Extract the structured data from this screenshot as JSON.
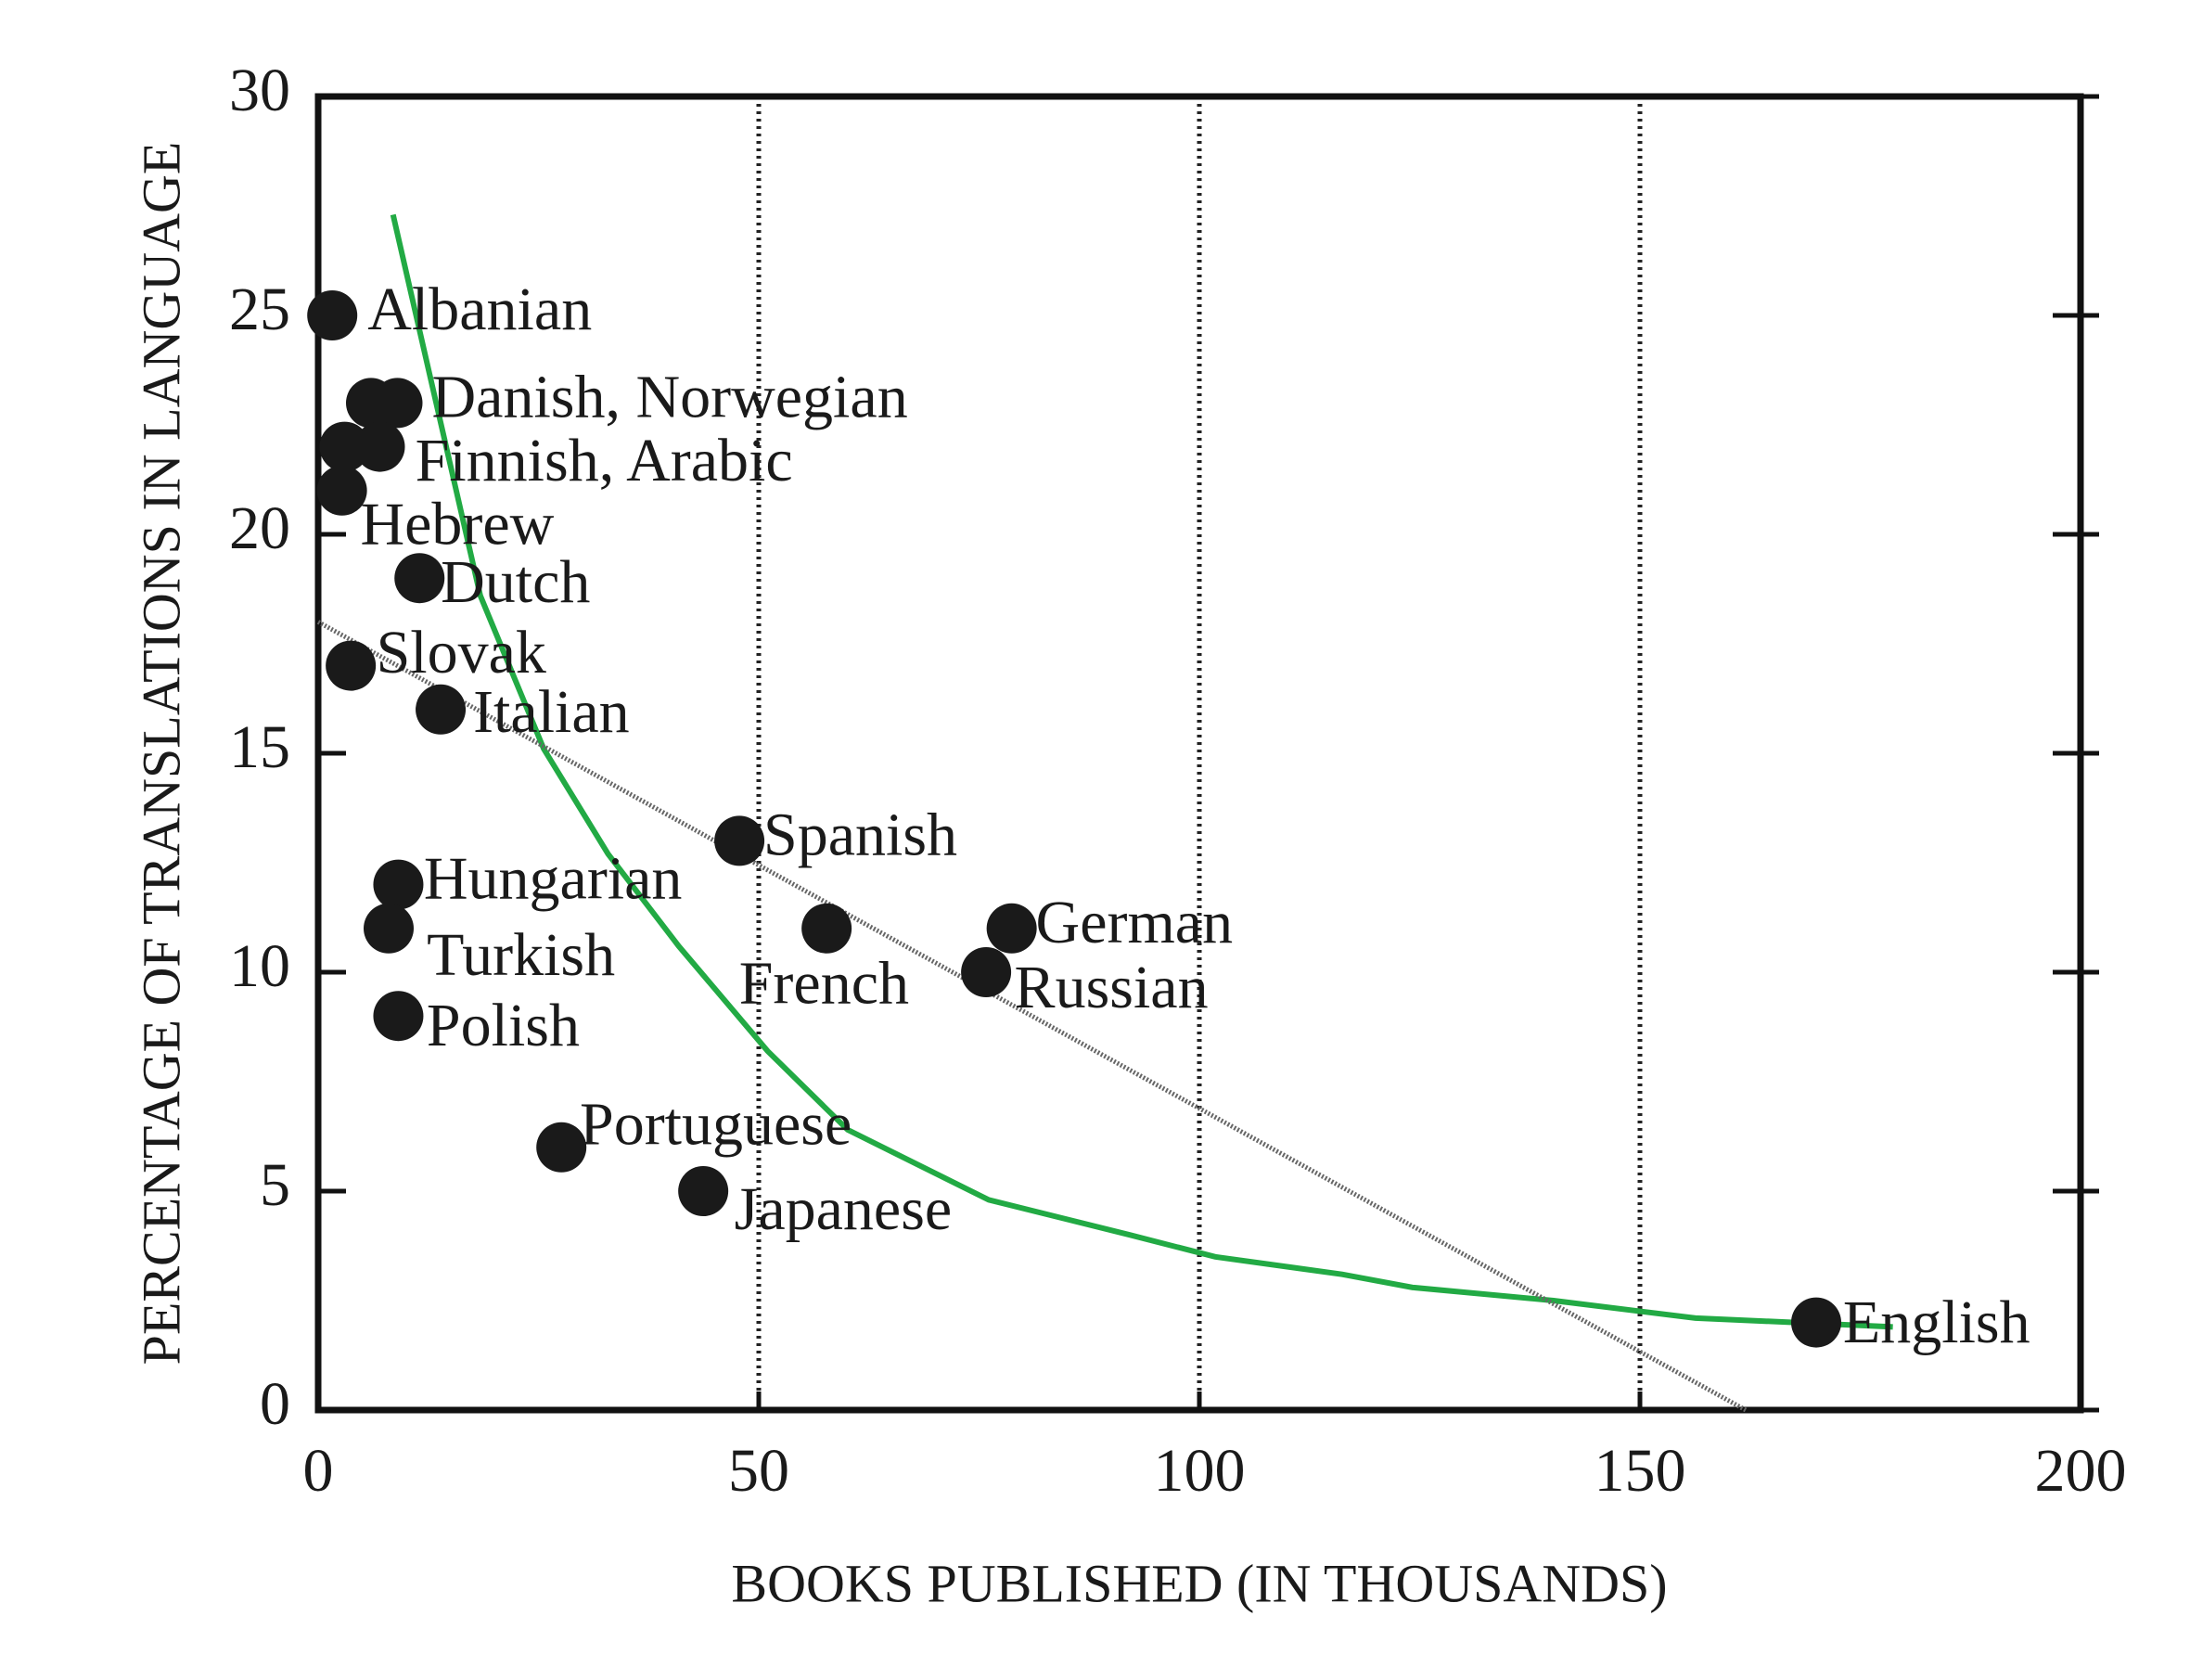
{
  "chart_data": {
    "type": "scatter",
    "xlabel": "BOOKS PUBLISHED (IN THOUSANDS)",
    "ylabel": "PERCENTAGE OF TRANSLATIONS IN LANGUAGE",
    "xlim": [
      0,
      200
    ],
    "xticks": [
      0,
      50,
      100,
      150,
      200
    ],
    "ylim": [
      0,
      30
    ],
    "yticks": [
      0,
      5,
      10,
      15,
      20,
      25,
      30
    ],
    "grid": "x",
    "point_color": "#1a1a1a",
    "groups": [
      {
        "label": "Albanian",
        "x": [
          1.6
        ],
        "y": [
          25
        ]
      },
      {
        "label": "Danish, Norwegian",
        "x": [
          6,
          9
        ],
        "y": [
          23,
          23
        ]
      },
      {
        "label": "Finnish, Arabic",
        "x": [
          3,
          7
        ],
        "y": [
          22,
          22
        ]
      },
      {
        "label": "Hebrew",
        "x": [
          2.7
        ],
        "y": [
          21
        ]
      },
      {
        "label": "Dutch",
        "x": [
          11.5
        ],
        "y": [
          19
        ]
      },
      {
        "label": "Slovak",
        "x": [
          3.7
        ],
        "y": [
          17
        ]
      },
      {
        "label": "Italian",
        "x": [
          13.9
        ],
        "y": [
          16
        ]
      },
      {
        "label": "Spanish",
        "x": [
          47.8
        ],
        "y": [
          13
        ]
      },
      {
        "label": "Hungarian",
        "x": [
          9.1
        ],
        "y": [
          12
        ]
      },
      {
        "label": "Turkish",
        "x": [
          8
        ],
        "y": [
          11
        ]
      },
      {
        "label": "French",
        "x": [
          57.7
        ],
        "y": [
          11
        ]
      },
      {
        "label": "German",
        "x": [
          78.7
        ],
        "y": [
          11
        ]
      },
      {
        "label": "Russian",
        "x": [
          75.8
        ],
        "y": [
          10
        ]
      },
      {
        "label": "Polish",
        "x": [
          9.1
        ],
        "y": [
          9
        ]
      },
      {
        "label": "Portuguese",
        "x": [
          27.6
        ],
        "y": [
          6
        ]
      },
      {
        "label": "Japanese",
        "x": [
          43.7
        ],
        "y": [
          5
        ]
      },
      {
        "label": "English",
        "x": [
          170
        ],
        "y": [
          2
        ]
      }
    ],
    "curves": [
      {
        "color": "#22aa44",
        "style": "solid",
        "x": [
          8.5,
          18.4,
          25.6,
          32.9,
          40.9,
          51,
          60.1,
          68.1,
          76.1,
          92.1,
          101.8,
          116.2,
          124.2,
          140.2,
          156.3,
          178.7
        ],
        "y": [
          27.3,
          18.6,
          15.1,
          12.7,
          10.6,
          8.2,
          6.4,
          5.6,
          4.8,
          4,
          3.5,
          3.1,
          2.8,
          2.5,
          2.1,
          1.9
        ]
      },
      {
        "color": "#666666",
        "style": "hatched",
        "x": [
          0,
          162
        ],
        "y": [
          18,
          0
        ]
      }
    ]
  }
}
